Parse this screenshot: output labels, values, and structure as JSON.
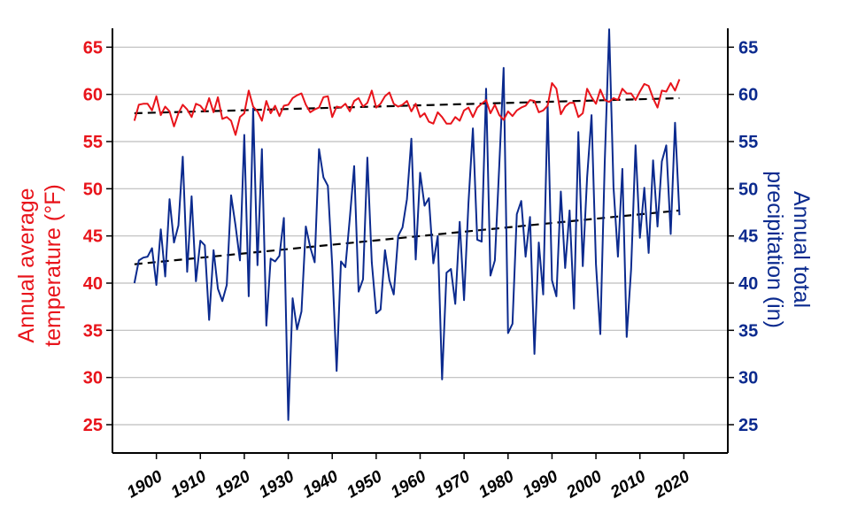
{
  "colors": {
    "temperature": "#e8141b",
    "precipitation": "#0b2a8e",
    "trend": "#000000"
  },
  "chart_data": {
    "type": "line",
    "title": "",
    "xlabel": "",
    "ylabel_left": "Annual average temperature (°F)",
    "ylabel_right": "Annual total precipitation (in)",
    "ylabel_left_lines": [
      "Annual average",
      "temperature (°F)"
    ],
    "ylabel_right_lines": [
      "Annual total",
      "precipitation (in)"
    ],
    "xlim": [
      1890,
      2030
    ],
    "ylim_left": [
      22,
      67
    ],
    "ylim_right": [
      22,
      67
    ],
    "xticks": [
      "1900",
      "1910",
      "1920",
      "1930",
      "1940",
      "1950",
      "1960",
      "1970",
      "1980",
      "1990",
      "2000",
      "2010",
      "2020"
    ],
    "yticks_left": [
      "25",
      "30",
      "35",
      "40",
      "45",
      "50",
      "55",
      "60",
      "65"
    ],
    "yticks_right": [
      "25",
      "30",
      "35",
      "40",
      "45",
      "50",
      "55",
      "60",
      "65"
    ],
    "grid": true,
    "x": [
      1895,
      1896,
      1897,
      1898,
      1899,
      1900,
      1901,
      1902,
      1903,
      1904,
      1905,
      1906,
      1907,
      1908,
      1909,
      1910,
      1911,
      1912,
      1913,
      1914,
      1915,
      1916,
      1917,
      1918,
      1919,
      1920,
      1921,
      1922,
      1923,
      1924,
      1925,
      1926,
      1927,
      1928,
      1929,
      1930,
      1931,
      1932,
      1933,
      1934,
      1935,
      1936,
      1937,
      1938,
      1939,
      1940,
      1941,
      1942,
      1943,
      1944,
      1945,
      1946,
      1947,
      1948,
      1949,
      1950,
      1951,
      1952,
      1953,
      1954,
      1955,
      1956,
      1957,
      1958,
      1959,
      1960,
      1961,
      1962,
      1963,
      1964,
      1965,
      1966,
      1967,
      1968,
      1969,
      1970,
      1971,
      1972,
      1973,
      1974,
      1975,
      1976,
      1977,
      1978,
      1979,
      1980,
      1981,
      1982,
      1983,
      1984,
      1985,
      1986,
      1987,
      1988,
      1989,
      1990,
      1991,
      1992,
      1993,
      1994,
      1995,
      1996,
      1997,
      1998,
      1999,
      2000,
      2001,
      2002,
      2003,
      2004,
      2005,
      2006,
      2007,
      2008,
      2009,
      2010,
      2011,
      2012,
      2013,
      2014,
      2015,
      2016,
      2017,
      2018,
      2019
    ],
    "series": [
      {
        "name": "Annual average temperature (°F)",
        "axis": "left",
        "values": [
          57.2,
          58.9,
          59.0,
          59.0,
          58.3,
          59.8,
          57.8,
          58.7,
          58.2,
          56.6,
          58.0,
          58.9,
          58.4,
          57.6,
          59.0,
          58.8,
          58.2,
          59.6,
          58.1,
          59.7,
          57.4,
          57.6,
          57.2,
          55.7,
          57.6,
          58.0,
          60.4,
          58.7,
          58.2,
          57.2,
          59.3,
          58.0,
          58.8,
          57.7,
          58.8,
          58.9,
          59.6,
          59.9,
          60.1,
          58.9,
          58.1,
          58.4,
          58.6,
          59.7,
          59.8,
          57.6,
          58.7,
          58.6,
          59.0,
          58.2,
          59.3,
          59.6,
          58.7,
          59.1,
          60.4,
          58.6,
          59.0,
          59.8,
          60.2,
          59.0,
          58.7,
          58.9,
          59.3,
          58.2,
          59.0,
          57.6,
          58.0,
          57.1,
          56.9,
          58.1,
          57.6,
          56.9,
          56.9,
          57.6,
          57.2,
          58.3,
          58.6,
          57.6,
          58.6,
          59.0,
          59.4,
          58.0,
          58.9,
          57.8,
          57.3,
          58.2,
          57.7,
          58.3,
          58.6,
          58.8,
          59.4,
          59.3,
          58.1,
          58.3,
          58.8,
          61.2,
          60.6,
          57.9,
          58.7,
          59.1,
          59.1,
          57.6,
          58.0,
          60.6,
          59.7,
          59.0,
          60.5,
          59.4,
          59.2,
          59.6,
          59.4,
          60.6,
          60.1,
          60.1,
          59.4,
          60.3,
          61.1,
          60.9,
          59.6,
          58.6,
          60.4,
          60.3,
          61.2,
          60.4,
          61.6
        ]
      },
      {
        "name": "Annual total precipitation (in)",
        "axis": "right",
        "values": [
          40.0,
          42.4,
          42.7,
          42.8,
          43.7,
          39.8,
          45.7,
          40.7,
          48.9,
          44.3,
          46.1,
          53.4,
          41.2,
          49.2,
          40.2,
          44.5,
          44.0,
          36.1,
          43.5,
          39.4,
          38.1,
          39.8,
          49.3,
          46.1,
          42.4,
          55.7,
          38.6,
          58.5,
          41.9,
          54.2,
          35.5,
          42.6,
          42.3,
          42.9,
          46.9,
          25.5,
          38.4,
          35.1,
          37.0,
          46.0,
          43.8,
          42.2,
          54.2,
          51.2,
          50.3,
          41.9,
          30.7,
          42.3,
          41.7,
          46.9,
          52.4,
          39.1,
          40.4,
          53.3,
          42.2,
          36.8,
          37.2,
          43.5,
          40.3,
          38.8,
          45.0,
          45.9,
          48.9,
          55.3,
          42.5,
          51.7,
          48.2,
          49.0,
          42.1,
          45.0,
          29.8,
          41.1,
          41.5,
          37.8,
          46.5,
          38.2,
          48.5,
          56.4,
          44.6,
          44.4,
          60.6,
          40.8,
          42.4,
          52.5,
          62.8,
          34.7,
          35.7,
          47.3,
          48.7,
          42.8,
          47.0,
          32.5,
          44.3,
          38.8,
          58.9,
          40.3,
          38.6,
          49.7,
          41.6,
          47.7,
          37.3,
          56.0,
          41.8,
          51.2,
          57.8,
          42.0,
          34.6,
          52.8,
          66.9,
          50.2,
          42.8,
          52.1,
          34.3,
          41.5,
          54.6,
          44.8,
          50.1,
          43.2,
          53.0,
          46.0,
          52.9,
          54.6,
          45.2,
          57.0,
          47.2
        ]
      }
    ],
    "trendlines": [
      {
        "axis": "left",
        "x": [
          1895,
          2019
        ],
        "values": [
          58.0,
          59.6
        ]
      },
      {
        "axis": "right",
        "x": [
          1895,
          2019
        ],
        "values": [
          42.0,
          47.7
        ]
      }
    ]
  }
}
